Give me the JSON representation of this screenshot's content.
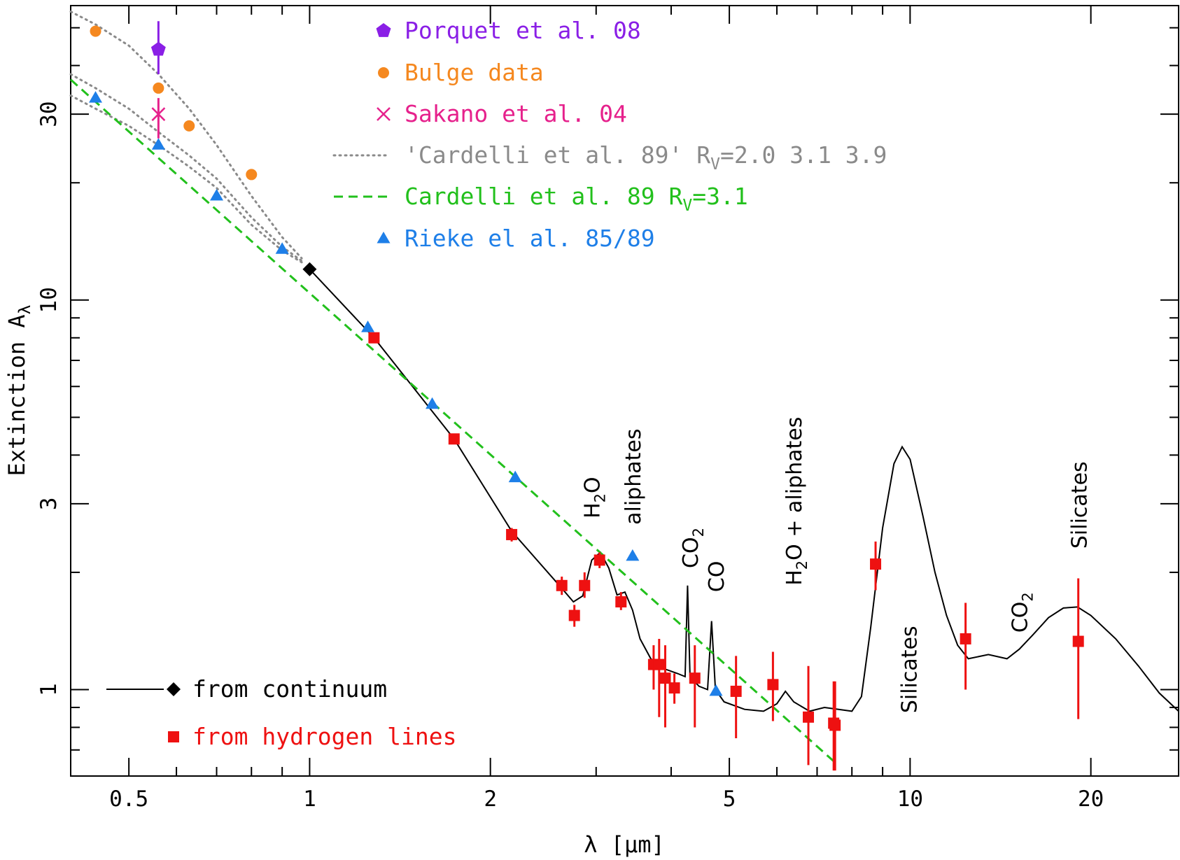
{
  "chart_data": {
    "type": "scatter",
    "xlabel": "λ [μm]",
    "ylabel": "Extinction A",
    "ylabel_sub": "λ",
    "xscale": "log",
    "yscale": "log",
    "xlim": [
      0.4,
      28.0
    ],
    "ylim": [
      0.6,
      57.0
    ],
    "xticks": [
      {
        "v": 0.5,
        "label": "0.5"
      },
      {
        "v": 1,
        "label": "1"
      },
      {
        "v": 2,
        "label": "2"
      },
      {
        "v": 5,
        "label": "5"
      },
      {
        "v": 10,
        "label": "10"
      },
      {
        "v": 20,
        "label": "20"
      }
    ],
    "yticks": [
      {
        "v": 1,
        "label": "1"
      },
      {
        "v": 3,
        "label": "3"
      },
      {
        "v": 10,
        "label": "10"
      },
      {
        "v": 30,
        "label": "30"
      }
    ],
    "colors": {
      "porquet": "#8a1fe6",
      "bulge": "#f5881f",
      "sakano": "#e6218c",
      "cardelli_dotted": "#8a8a8a",
      "cardelli": "#22c01c",
      "rieke": "#1e7fe8",
      "continuum": "#000000",
      "hydrogen": "#ee1111"
    },
    "legend": [
      {
        "key": "porquet",
        "marker": "pentagon",
        "label": "Porquet et al. 08"
      },
      {
        "key": "bulge",
        "marker": "circle",
        "label": "Bulge data"
      },
      {
        "key": "sakano",
        "marker": "cross",
        "label": "Sakano et al. 04"
      },
      {
        "key": "cardelli_dotted",
        "marker": "dotted",
        "label": "'Cardelli et al. 89' R",
        "sub": "V",
        "tail": "=2.0 3.1 3.9"
      },
      {
        "key": "cardelli",
        "marker": "dashed",
        "label": "Cardelli et al. 89 R",
        "sub": "V",
        "tail": "=3.1"
      },
      {
        "key": "rieke",
        "marker": "triangle",
        "label": "Rieke el al. 85/89"
      }
    ],
    "legend2": [
      {
        "key": "continuum",
        "marker": "line+diamond",
        "label": "from continuum"
      },
      {
        "key": "hydrogen",
        "marker": "square",
        "label": "from hydrogen lines"
      }
    ],
    "series": {
      "porquet": [
        {
          "x": 0.56,
          "y": 44,
          "ylo": 38,
          "yhi": 52
        }
      ],
      "bulge": [
        {
          "x": 0.44,
          "y": 49
        },
        {
          "x": 0.56,
          "y": 35
        },
        {
          "x": 0.63,
          "y": 28
        },
        {
          "x": 0.8,
          "y": 21
        }
      ],
      "sakano": [
        {
          "x": 0.56,
          "y": 30,
          "ylo": 26,
          "yhi": 33
        }
      ],
      "rieke": [
        {
          "x": 0.44,
          "y": 33
        },
        {
          "x": 0.56,
          "y": 25
        },
        {
          "x": 0.7,
          "y": 18.5
        },
        {
          "x": 0.9,
          "y": 13.5
        },
        {
          "x": 1.25,
          "y": 8.5
        },
        {
          "x": 1.6,
          "y": 5.4
        },
        {
          "x": 2.2,
          "y": 3.5
        },
        {
          "x": 3.45,
          "y": 2.2
        },
        {
          "x": 4.75,
          "y": 0.99
        }
      ],
      "continuum_diamond": [
        {
          "x": 1.0,
          "y": 12.0
        }
      ],
      "hydrogen": [
        {
          "x": 1.28,
          "y": 8.0,
          "ylo": 7.8,
          "yhi": 8.2
        },
        {
          "x": 1.74,
          "y": 4.4,
          "ylo": 4.3,
          "yhi": 4.5
        },
        {
          "x": 2.17,
          "y": 2.5,
          "ylo": 2.4,
          "yhi": 2.6
        },
        {
          "x": 2.63,
          "y": 1.85,
          "ylo": 1.75,
          "yhi": 1.95
        },
        {
          "x": 2.76,
          "y": 1.55,
          "ylo": 1.45,
          "yhi": 1.65
        },
        {
          "x": 2.87,
          "y": 1.85,
          "ylo": 1.72,
          "yhi": 2.0
        },
        {
          "x": 3.04,
          "y": 2.15,
          "ylo": 2.05,
          "yhi": 2.25
        },
        {
          "x": 3.3,
          "y": 1.68,
          "ylo": 1.6,
          "yhi": 1.78
        },
        {
          "x": 3.74,
          "y": 1.16,
          "ylo": 1.0,
          "yhi": 1.3
        },
        {
          "x": 3.82,
          "y": 1.16,
          "ylo": 0.85,
          "yhi": 1.35
        },
        {
          "x": 3.91,
          "y": 1.07,
          "ylo": 0.8,
          "yhi": 1.3
        },
        {
          "x": 4.05,
          "y": 1.01,
          "ylo": 0.92,
          "yhi": 1.1
        },
        {
          "x": 4.38,
          "y": 1.07,
          "ylo": 0.8,
          "yhi": 1.3
        },
        {
          "x": 5.13,
          "y": 0.99,
          "ylo": 0.75,
          "yhi": 1.22
        },
        {
          "x": 5.91,
          "y": 1.03,
          "ylo": 0.83,
          "yhi": 1.25
        },
        {
          "x": 6.77,
          "y": 0.85,
          "ylo": 0.64,
          "yhi": 1.15
        },
        {
          "x": 7.46,
          "y": 0.82,
          "ylo": 0.62,
          "yhi": 1.05
        },
        {
          "x": 7.5,
          "y": 0.81,
          "ylo": 0.62,
          "yhi": 1.05
        },
        {
          "x": 8.76,
          "y": 2.1,
          "ylo": 1.8,
          "yhi": 2.4
        },
        {
          "x": 12.37,
          "y": 1.35,
          "ylo": 1.0,
          "yhi": 1.67
        },
        {
          "x": 19.06,
          "y": 1.33,
          "ylo": 0.84,
          "yhi": 1.93
        }
      ],
      "cardelli_line": [
        {
          "x": 0.4,
          "y": 36.8
        },
        {
          "x": 7.5,
          "y": 0.65
        }
      ],
      "cardelli_dotted": [
        [
          {
            "x": 0.4,
            "y": 55
          },
          {
            "x": 0.44,
            "y": 51
          },
          {
            "x": 0.5,
            "y": 45
          },
          {
            "x": 0.56,
            "y": 38
          },
          {
            "x": 0.63,
            "y": 31
          },
          {
            "x": 0.7,
            "y": 25
          },
          {
            "x": 0.8,
            "y": 18.5
          },
          {
            "x": 0.9,
            "y": 14.5
          },
          {
            "x": 0.97,
            "y": 12.8
          }
        ],
        [
          {
            "x": 0.4,
            "y": 38
          },
          {
            "x": 0.44,
            "y": 35
          },
          {
            "x": 0.5,
            "y": 31
          },
          {
            "x": 0.56,
            "y": 27
          },
          {
            "x": 0.63,
            "y": 23.5
          },
          {
            "x": 0.7,
            "y": 20.5
          },
          {
            "x": 0.8,
            "y": 16.3
          },
          {
            "x": 0.9,
            "y": 13.7
          },
          {
            "x": 0.97,
            "y": 12.6
          }
        ],
        [
          {
            "x": 0.4,
            "y": 33.5
          },
          {
            "x": 0.44,
            "y": 31
          },
          {
            "x": 0.5,
            "y": 28
          },
          {
            "x": 0.56,
            "y": 25
          },
          {
            "x": 0.63,
            "y": 22
          },
          {
            "x": 0.7,
            "y": 19.4
          },
          {
            "x": 0.8,
            "y": 15.6
          },
          {
            "x": 0.9,
            "y": 13.4
          },
          {
            "x": 0.97,
            "y": 12.5
          }
        ]
      ],
      "continuum_line": [
        {
          "x": 1.0,
          "y": 12.0
        },
        {
          "x": 1.28,
          "y": 8.0
        },
        {
          "x": 1.74,
          "y": 4.4
        },
        {
          "x": 2.17,
          "y": 2.55
        },
        {
          "x": 2.63,
          "y": 1.82
        },
        {
          "x": 2.75,
          "y": 1.68
        },
        {
          "x": 2.85,
          "y": 1.74
        },
        {
          "x": 2.95,
          "y": 2.15
        },
        {
          "x": 3.05,
          "y": 2.25
        },
        {
          "x": 3.15,
          "y": 2.05
        },
        {
          "x": 3.25,
          "y": 1.75
        },
        {
          "x": 3.35,
          "y": 1.78
        },
        {
          "x": 3.45,
          "y": 1.6
        },
        {
          "x": 3.55,
          "y": 1.35
        },
        {
          "x": 3.7,
          "y": 1.2
        },
        {
          "x": 3.9,
          "y": 1.13
        },
        {
          "x": 4.1,
          "y": 1.1
        },
        {
          "x": 4.22,
          "y": 1.08
        },
        {
          "x": 4.26,
          "y": 1.85
        },
        {
          "x": 4.3,
          "y": 1.08
        },
        {
          "x": 4.45,
          "y": 1.02
        },
        {
          "x": 4.6,
          "y": 1.0
        },
        {
          "x": 4.67,
          "y": 1.5
        },
        {
          "x": 4.74,
          "y": 1.0
        },
        {
          "x": 4.9,
          "y": 0.93
        },
        {
          "x": 5.3,
          "y": 0.89
        },
        {
          "x": 5.7,
          "y": 0.88
        },
        {
          "x": 6.0,
          "y": 0.92
        },
        {
          "x": 6.2,
          "y": 0.99
        },
        {
          "x": 6.4,
          "y": 0.93
        },
        {
          "x": 6.8,
          "y": 0.88
        },
        {
          "x": 7.2,
          "y": 0.9
        },
        {
          "x": 7.6,
          "y": 0.89
        },
        {
          "x": 8.0,
          "y": 0.88
        },
        {
          "x": 8.3,
          "y": 0.96
        },
        {
          "x": 8.6,
          "y": 1.45
        },
        {
          "x": 9.0,
          "y": 2.6
        },
        {
          "x": 9.4,
          "y": 3.8
        },
        {
          "x": 9.7,
          "y": 4.2
        },
        {
          "x": 10.0,
          "y": 3.9
        },
        {
          "x": 10.5,
          "y": 2.8
        },
        {
          "x": 11.0,
          "y": 2.0
        },
        {
          "x": 11.5,
          "y": 1.55
        },
        {
          "x": 12.0,
          "y": 1.3
        },
        {
          "x": 12.5,
          "y": 1.2
        },
        {
          "x": 13.5,
          "y": 1.23
        },
        {
          "x": 14.5,
          "y": 1.2
        },
        {
          "x": 15.2,
          "y": 1.27
        },
        {
          "x": 16.0,
          "y": 1.38
        },
        {
          "x": 17.0,
          "y": 1.53
        },
        {
          "x": 18.0,
          "y": 1.62
        },
        {
          "x": 19.0,
          "y": 1.63
        },
        {
          "x": 20.0,
          "y": 1.55
        },
        {
          "x": 22.0,
          "y": 1.35
        },
        {
          "x": 24.0,
          "y": 1.15
        },
        {
          "x": 26.0,
          "y": 0.98
        },
        {
          "x": 28.0,
          "y": 0.88
        }
      ]
    },
    "annotations": [
      {
        "main": "H",
        "sub": "2",
        "tail": "O",
        "x": 2.95,
        "y": 2.75
      },
      {
        "main": "aliphates",
        "x": 3.45,
        "y": 2.65
      },
      {
        "main": "CO",
        "sub": "2",
        "x": 4.3,
        "y": 2.05
      },
      {
        "main": "CO",
        "x": 4.75,
        "y": 1.78
      },
      {
        "main": "H",
        "sub": "2",
        "tail": "O + aliphates",
        "x": 6.4,
        "y": 1.85
      },
      {
        "main": "Silicates",
        "x": 9.95,
        "y": 0.87
      },
      {
        "main": "CO",
        "sub": "2",
        "x": 15.2,
        "y": 1.4
      },
      {
        "main": "Silicates",
        "x": 19.1,
        "y": 2.3
      }
    ]
  }
}
